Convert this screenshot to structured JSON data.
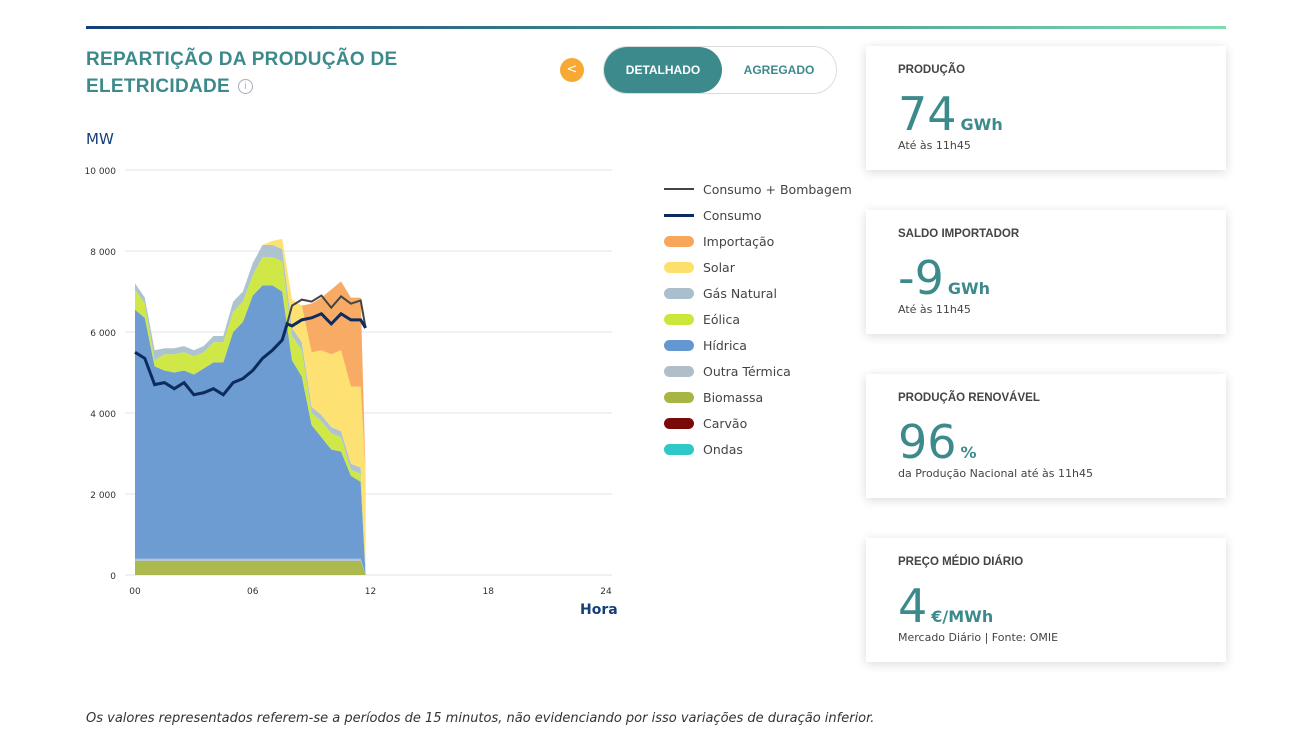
{
  "title_line1": "REPARTIÇÃO DA PRODUÇÃO DE",
  "title_line2": "ELETRICIDADE",
  "toggle": {
    "active": "DETALHADO",
    "inactive": "AGREGADO"
  },
  "cards": [
    {
      "label": "PRODUÇÃO",
      "value": "74",
      "unit": "GWh",
      "sub": "Até às 11h45"
    },
    {
      "label": "SALDO IMPORTADOR",
      "value": "-9",
      "unit": "GWh",
      "sub": "Até às 11h45"
    },
    {
      "label": "PRODUÇÃO RENOVÁVEL",
      "value": "96",
      "unit": "%",
      "sub": "da Produção Nacional até às 11h45"
    },
    {
      "label": "PREÇO MÉDIO DIÁRIO",
      "value": "4",
      "unit": "€/MWh",
      "sub": "Mercado Diário | Fonte: OMIE"
    }
  ],
  "footnote": "Os valores representados referem-se a períodos de 15 minutos, não evidenciando por isso variações de duração inferior.",
  "chart_data": {
    "type": "area",
    "ylabel": "MW",
    "xlabel": "Hora",
    "ylim": [
      0,
      10000
    ],
    "xlim": [
      0,
      24
    ],
    "yticks": [
      "0",
      "2 000",
      "4 000",
      "6 000",
      "8 000",
      "10 000"
    ],
    "xticks": [
      "00",
      "06",
      "12",
      "18",
      "24"
    ],
    "x": [
      0,
      0.5,
      1,
      1.5,
      2,
      2.5,
      3,
      3.5,
      4,
      4.5,
      5,
      5.5,
      6,
      6.5,
      7,
      7.5,
      8,
      8.5,
      9,
      9.5,
      10,
      10.5,
      11,
      11.5,
      11.75
    ],
    "series": [
      {
        "name": "Ondas",
        "color": "#2ec8c8",
        "values": [
          0,
          0,
          0,
          0,
          0,
          0,
          0,
          0,
          0,
          0,
          0,
          0,
          0,
          0,
          0,
          0,
          0,
          0,
          0,
          0,
          0,
          0,
          0,
          0,
          0
        ]
      },
      {
        "name": "Carvão",
        "color": "#7a0a0a",
        "values": [
          0,
          0,
          0,
          0,
          0,
          0,
          0,
          0,
          0,
          0,
          0,
          0,
          0,
          0,
          0,
          0,
          0,
          0,
          0,
          0,
          0,
          0,
          0,
          0,
          0
        ]
      },
      {
        "name": "Biomassa",
        "color": "#a8b545",
        "values": [
          350,
          350,
          350,
          350,
          350,
          350,
          350,
          350,
          350,
          350,
          350,
          350,
          350,
          350,
          350,
          350,
          350,
          350,
          350,
          350,
          350,
          350,
          350,
          350,
          0
        ]
      },
      {
        "name": "Outra Térmica",
        "color": "#b0bfc7",
        "values": [
          50,
          50,
          50,
          50,
          50,
          50,
          50,
          50,
          50,
          50,
          50,
          50,
          50,
          50,
          50,
          50,
          50,
          50,
          50,
          50,
          50,
          50,
          50,
          50,
          0
        ]
      },
      {
        "name": "Hídrica",
        "color": "#6497cf",
        "values": [
          6150,
          5950,
          4750,
          4650,
          4600,
          4650,
          4550,
          4700,
          4850,
          4850,
          5600,
          5850,
          6500,
          6750,
          6750,
          6600,
          4900,
          4500,
          3300,
          3000,
          2700,
          2650,
          2050,
          1900,
          0
        ]
      },
      {
        "name": "Eólica",
        "color": "#cde63e",
        "values": [
          500,
          350,
          150,
          400,
          450,
          450,
          450,
          400,
          500,
          500,
          500,
          500,
          500,
          700,
          700,
          750,
          600,
          650,
          300,
          400,
          400,
          350,
          150,
          200,
          0
        ]
      },
      {
        "name": "Gás Natural",
        "color": "#a9c0cc",
        "values": [
          150,
          150,
          250,
          150,
          150,
          150,
          150,
          150,
          150,
          150,
          250,
          250,
          300,
          300,
          300,
          300,
          200,
          200,
          150,
          150,
          150,
          150,
          150,
          150,
          0
        ]
      },
      {
        "name": "Solar",
        "color": "#fde06b",
        "values": [
          0,
          0,
          0,
          0,
          0,
          0,
          0,
          0,
          0,
          0,
          0,
          0,
          0,
          0,
          100,
          250,
          700,
          900,
          1350,
          1600,
          1800,
          2000,
          1900,
          2000,
          2500
        ]
      },
      {
        "name": "Importação",
        "color": "#f8a65c",
        "values": [
          0,
          0,
          0,
          0,
          0,
          0,
          0,
          0,
          0,
          0,
          0,
          0,
          0,
          0,
          0,
          0,
          0,
          0,
          1200,
          1300,
          1600,
          1700,
          2200,
          2200,
          0
        ]
      }
    ],
    "lines": [
      {
        "name": "Consumo + Bombagem",
        "color": "#444444",
        "x": [
          7.75,
          8,
          8.5,
          9,
          9.5,
          10,
          10.5,
          11,
          11.5,
          11.75
        ],
        "values": [
          6200,
          6650,
          6800,
          6750,
          6900,
          6600,
          6880,
          6700,
          6780,
          6100
        ]
      },
      {
        "name": "Consumo",
        "color": "#0d2b5e",
        "x": [
          0,
          0.5,
          1,
          1.5,
          2,
          2.5,
          3,
          3.5,
          4,
          4.5,
          5,
          5.5,
          6,
          6.5,
          7,
          7.5,
          7.75,
          8,
          8.5,
          9,
          9.5,
          10,
          10.5,
          11,
          11.5,
          11.75
        ],
        "values": [
          5500,
          5350,
          4700,
          4750,
          4600,
          4750,
          4450,
          4500,
          4600,
          4450,
          4750,
          4850,
          5050,
          5350,
          5550,
          5800,
          6200,
          6150,
          6300,
          6350,
          6450,
          6200,
          6450,
          6300,
          6300,
          6100
        ]
      }
    ],
    "legend": [
      "Consumo + Bombagem",
      "Consumo",
      "Importação",
      "Solar",
      "Gás Natural",
      "Eólica",
      "Hídrica",
      "Outra Térmica",
      "Biomassa",
      "Carvão",
      "Ondas"
    ]
  }
}
